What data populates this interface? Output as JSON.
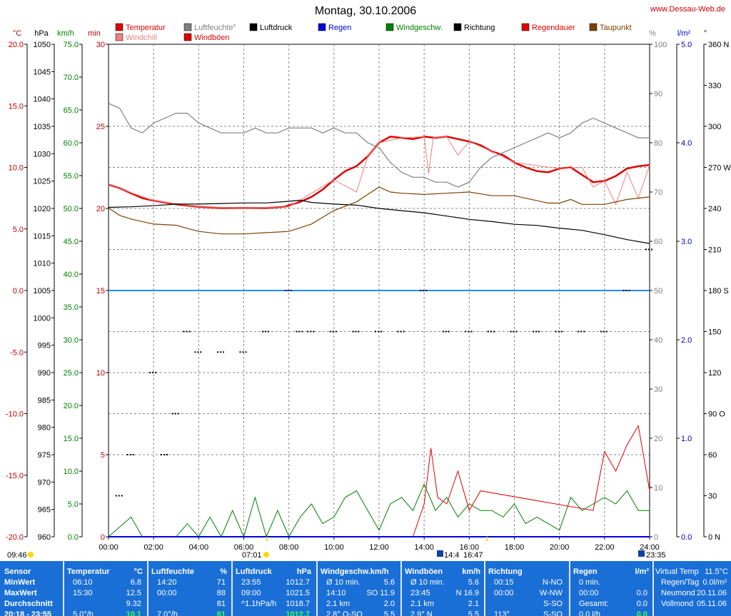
{
  "title": "Montag, 30.10.2006",
  "site": "www.Dessau-Web.de",
  "legend": [
    {
      "label": "Temperatur",
      "color": "#e00000"
    },
    {
      "label": "Luftfeuchte°",
      "color": "#808080"
    },
    {
      "label": "Luftdruck",
      "color": "#000000"
    },
    {
      "label": "Regen",
      "color": "#0000e0"
    },
    {
      "label": "Windgeschw.",
      "color": "#008000"
    },
    {
      "label": "Richtung",
      "color": "#000000"
    },
    {
      "label": "Regendauer",
      "color": "#e00000"
    },
    {
      "label": "Taupunkt",
      "color": "#804000"
    },
    {
      "label": "Windchill",
      "color": "#f08080"
    },
    {
      "label": "Windböen",
      "color": "#e00000"
    }
  ],
  "axes": {
    "temp": {
      "unit": "°C",
      "ticks": [
        "20.0",
        "15.0",
        "10.0",
        "5.0",
        "0.0",
        "-5.0",
        "-10.0",
        "-15.0",
        "-20.0"
      ],
      "color": "#c00000"
    },
    "pressure": {
      "unit": "hPa",
      "ticks": [
        "1050",
        "1045",
        "1040",
        "1035",
        "1030",
        "1025",
        "1020",
        "1015",
        "1010",
        "1005",
        "1000",
        "995",
        "990",
        "985",
        "980",
        "975",
        "970",
        "965",
        "960"
      ],
      "color": "#000000"
    },
    "wind": {
      "unit": "km/h",
      "ticks": [
        "75.0",
        "70.0",
        "65.0",
        "60.0",
        "55.0",
        "50.0",
        "45.0",
        "40.0",
        "35.0",
        "30.0",
        "25.0",
        "20.0",
        "15.0",
        "10.0",
        "5.0",
        "0.0"
      ],
      "color": "#008000"
    },
    "min": {
      "unit": "min",
      "ticks": [
        "30",
        "25",
        "20",
        "15",
        "10",
        "5",
        "0"
      ],
      "color": "#c00000"
    },
    "humidity": {
      "unit": "%",
      "ticks": [
        "100",
        "90",
        "80",
        "70",
        "60",
        "50",
        "40",
        "30",
        "20",
        "10",
        "0"
      ],
      "color": "#808080"
    },
    "rain": {
      "unit": "l/m²",
      "ticks": [
        "5.0",
        "4.0",
        "3.0",
        "2.0",
        "1.0",
        "0.0"
      ],
      "color": "#0000c0"
    },
    "direction": {
      "unit": "°",
      "ticks": [
        "360 N",
        "330",
        "300",
        "270 W",
        "240",
        "210",
        "180 S",
        "150",
        "120",
        "90 O",
        "60",
        "30",
        "0 N"
      ],
      "color": "#000000"
    },
    "time": {
      "ticks": [
        "00:00",
        "02:00",
        "04:00",
        "06:00",
        "08:00",
        "10:00",
        "12:00",
        "14:00",
        "16:00",
        "18:00",
        "20:00",
        "22:00",
        "24:00"
      ]
    }
  },
  "sun_moon": {
    "moonrise": "09:46",
    "sunrise": "07:01",
    "moonset_1": "14:4",
    "sunset": "16:47",
    "moon_2": "23:35"
  },
  "chart_data": {
    "type": "line",
    "x_unit": "hours",
    "series": [
      {
        "name": "Temperatur",
        "unit": "°C",
        "color": "#e00000",
        "x": [
          0,
          0.5,
          1,
          1.5,
          2,
          3,
          4,
          5,
          6,
          7,
          7.8,
          8.5,
          9,
          9.5,
          10,
          10.5,
          11,
          11.5,
          12,
          12.5,
          13,
          13.5,
          14,
          14.5,
          15,
          15.5,
          16,
          16.5,
          17,
          17.5,
          18,
          18.5,
          19,
          19.5,
          20,
          20.5,
          21,
          21.5,
          22,
          22.5,
          23,
          23.5,
          24
        ],
        "y": [
          8.6,
          8.3,
          7.9,
          7.5,
          7.3,
          7.0,
          6.8,
          6.7,
          6.7,
          6.7,
          6.8,
          7.2,
          7.6,
          8.2,
          9.0,
          9.7,
          10.1,
          10.9,
          12.0,
          12.5,
          12.4,
          12.3,
          12.5,
          12.4,
          12.5,
          12.3,
          12.1,
          11.8,
          11.3,
          11.0,
          10.4,
          10.0,
          9.7,
          9.6,
          9.9,
          10.0,
          9.4,
          8.8,
          8.9,
          9.3,
          9.9,
          10.1,
          10.2
        ]
      },
      {
        "name": "Windchill",
        "unit": "°C",
        "color": "#f08080",
        "x": [
          0,
          2,
          4,
          6,
          8,
          10,
          11,
          11.5,
          12,
          13,
          14,
          14.2,
          14.4,
          15,
          15.5,
          16,
          17,
          18,
          20,
          21,
          21.5,
          22,
          22.5,
          23,
          23.5,
          24
        ],
        "y": [
          8.6,
          7.3,
          6.8,
          6.7,
          6.8,
          9.0,
          8.0,
          10.9,
          12.0,
          12.4,
          12.5,
          9.5,
          12.4,
          12.5,
          11.0,
          12.1,
          11.3,
          10.4,
          9.9,
          10.0,
          8.4,
          8.9,
          7.0,
          9.6,
          7.5,
          10.2
        ]
      },
      {
        "name": "Luftfeuchte",
        "unit": "%",
        "color": "#808080",
        "x": [
          0,
          0.5,
          1,
          1.5,
          2,
          2.5,
          3,
          3.5,
          4,
          4.5,
          5,
          5.5,
          6,
          6.5,
          7,
          7.5,
          8,
          8.5,
          9,
          9.5,
          10,
          10.5,
          11,
          11.5,
          12,
          12.5,
          13,
          13.5,
          14,
          14.5,
          15,
          15.5,
          16,
          16.5,
          17,
          17.5,
          18,
          18.5,
          19,
          19.5,
          20,
          20.5,
          21,
          21.5,
          22,
          22.5,
          23,
          23.5,
          24
        ],
        "y": [
          88,
          87,
          83,
          82,
          84,
          85,
          86,
          86,
          84,
          83,
          82,
          82,
          82,
          83,
          82,
          82,
          83,
          83,
          83,
          82,
          83,
          82,
          82,
          80,
          79,
          76,
          74,
          73,
          73,
          72,
          72,
          71,
          72,
          75,
          77,
          78,
          79,
          80,
          81,
          82,
          81,
          82,
          84,
          85,
          84,
          83,
          82,
          81,
          81
        ]
      },
      {
        "name": "Luftdruck",
        "unit": "hPa",
        "color": "#000000",
        "x": [
          0,
          1,
          2,
          3,
          4,
          5,
          6,
          7,
          8,
          8.5,
          9,
          10,
          11,
          12,
          13,
          14,
          15,
          16,
          17,
          18,
          19,
          20,
          21,
          22,
          23,
          24
        ],
        "y": [
          1020.2,
          1020.3,
          1020.5,
          1020.8,
          1020.8,
          1020.9,
          1021.0,
          1021.0,
          1021.3,
          1021.5,
          1021.1,
          1020.8,
          1020.6,
          1020.0,
          1019.6,
          1019.2,
          1018.6,
          1018.0,
          1017.6,
          1017.1,
          1016.9,
          1016.4,
          1016.0,
          1015.2,
          1014.3,
          1013.6
        ]
      },
      {
        "name": "Taupunkt",
        "unit": "°C",
        "color": "#804000",
        "x": [
          0,
          0.5,
          1,
          2,
          3,
          4,
          5,
          6,
          7,
          8,
          9,
          10,
          11,
          11.5,
          12,
          12.5,
          13,
          14,
          15,
          16,
          17,
          18,
          19,
          19.5,
          20,
          20.5,
          21,
          22,
          23,
          24
        ],
        "y": [
          6.7,
          6.1,
          5.8,
          5.4,
          5.3,
          4.8,
          4.6,
          4.6,
          4.7,
          4.8,
          5.4,
          6.5,
          7.2,
          7.8,
          8.4,
          8.0,
          7.9,
          7.8,
          7.9,
          8.0,
          7.7,
          7.7,
          7.3,
          7.1,
          7.1,
          7.4,
          7.0,
          7.0,
          7.4,
          7.6
        ]
      },
      {
        "name": "Windgeschw.",
        "unit": "km/h",
        "color": "#008000",
        "x": [
          0,
          1,
          1.5,
          2,
          3,
          3.5,
          4,
          4.5,
          5,
          5.5,
          6,
          6.5,
          7,
          7.5,
          8,
          8.5,
          9,
          9.5,
          10,
          10.5,
          11,
          11.5,
          12,
          12.5,
          13,
          13.5,
          14,
          14.5,
          15,
          15.5,
          16,
          16.5,
          17,
          17.5,
          18,
          18.5,
          19,
          19.5,
          20,
          20.5,
          21,
          21.5,
          22,
          22.5,
          23,
          23.5,
          24
        ],
        "y": [
          0,
          3,
          0,
          0,
          0,
          2,
          0,
          3,
          0,
          4,
          0,
          6,
          0,
          4,
          0,
          3,
          5,
          2,
          3,
          6,
          7,
          4,
          1,
          5,
          6,
          4,
          8,
          4,
          6,
          3,
          5,
          4,
          4,
          3,
          5,
          2,
          3,
          2,
          1,
          6,
          4,
          5,
          6,
          5,
          7,
          4,
          4
        ]
      },
      {
        "name": "Windböen",
        "unit": "km/h",
        "color": "#e00000",
        "x": [
          13.5,
          14,
          14.3,
          14.6,
          15,
          15.5,
          16,
          16.5,
          21.5,
          22,
          22.5,
          23,
          23.5,
          24
        ],
        "y": [
          0,
          5,
          13.5,
          6,
          5,
          10,
          4,
          7,
          4,
          13,
          10,
          14,
          16.9,
          7
        ]
      },
      {
        "name": "Regen",
        "unit": "l/m²",
        "color": "#0000e0",
        "x": [
          0,
          24
        ],
        "y": [
          0,
          0
        ]
      },
      {
        "name": "Richtung",
        "unit": "°",
        "color": "#000000",
        "x": [
          0.5,
          1,
          2,
          2.5,
          3,
          3.5,
          4,
          5,
          6,
          7,
          8,
          8.5,
          9,
          10,
          11,
          12,
          13,
          14,
          15,
          16,
          17,
          18,
          19,
          20,
          21,
          22,
          23,
          24
        ],
        "y": [
          30,
          60,
          120,
          60,
          90,
          150,
          135,
          135,
          135,
          150,
          180,
          150,
          150,
          150,
          150,
          150,
          150,
          180,
          150,
          150,
          150,
          150,
          150,
          150,
          150,
          150,
          180,
          210
        ]
      }
    ],
    "horizontal_line": {
      "value_min": 15,
      "color": "#1e8cff"
    }
  },
  "table": {
    "row_labels": [
      "Sensor",
      "MinWert",
      "MaxWert",
      "Durchschnitt",
      "20:18 - 23:55"
    ],
    "columns": [
      {
        "title": "Temperatur",
        "unit": "°C",
        "rows": [
          [
            "06:10",
            "6.8"
          ],
          [
            "15:30",
            "12.5"
          ],
          [
            "",
            "9.32"
          ],
          [
            "5.0°/h",
            "10.1"
          ]
        ]
      },
      {
        "title": "Luftfeuchte",
        "unit": "%",
        "rows": [
          [
            "14:20",
            "71"
          ],
          [
            "00:00",
            "88"
          ],
          [
            "",
            "81"
          ],
          [
            "7.0°/h",
            "81"
          ]
        ]
      },
      {
        "title": "Luftdruck",
        "unit": "hPa",
        "rows": [
          [
            "23:55",
            "1012.7"
          ],
          [
            "09:00",
            "1021.5"
          ],
          [
            "^1.1hPa/h",
            "1018.7"
          ],
          [
            "",
            "1012.7"
          ]
        ]
      },
      {
        "title": "Windgeschw.km/h",
        "unit": "",
        "rows": [
          [
            "Ø 10 min.",
            "5.6"
          ],
          [
            "14:10",
            "SO 11.9"
          ],
          [
            "2.1 km",
            "2.0"
          ],
          [
            "2.8° O-SO",
            "5.5"
          ]
        ]
      },
      {
        "title": "Windböen",
        "unit": "km/h",
        "rows": [
          [
            "Ø 10 min.",
            "5.6"
          ],
          [
            "23:45",
            "N 16.9"
          ],
          [
            "2.1 km",
            "2.1"
          ],
          [
            "2.9° N",
            "5.5"
          ]
        ]
      },
      {
        "title": "Richtung",
        "unit": "",
        "rows": [
          [
            "00:15",
            "N-NO"
          ],
          [
            "00:00",
            "W-NW"
          ],
          [
            "",
            "S-SO"
          ],
          [
            "113°",
            "S-SO"
          ]
        ]
      },
      {
        "title": "Regen",
        "unit": "l/m²",
        "rows": [
          [
            "0 min.",
            ""
          ],
          [
            "00:00",
            "0.0"
          ],
          [
            "Gesamt:",
            "0.0"
          ],
          [
            "0.0 l/h",
            "0.0"
          ]
        ]
      },
      {
        "title": "",
        "unit": "",
        "rows": [
          [
            "Virtual Temp",
            "11.5°C"
          ],
          [
            "Regen/Tag",
            "0.0l/m²"
          ],
          [
            "Neumond",
            "20.11.06"
          ],
          [
            "Vollmond",
            "05.11.06"
          ]
        ]
      }
    ]
  }
}
